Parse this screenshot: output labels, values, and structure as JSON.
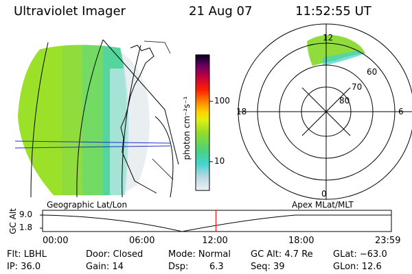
{
  "header": {
    "instrument": "Ultraviolet Imager",
    "date": "21 Aug 07",
    "time": "11:52:55 UT"
  },
  "colorbar": {
    "unit_label": "photon cm⁻²s⁻¹",
    "ticks": [
      "100",
      "10"
    ],
    "colors": [
      "#e8eef0",
      "#b9d9e0",
      "#3fd3d0",
      "#27c7c9",
      "#4cd37a",
      "#79dc35",
      "#a7e61a",
      "#d7ef13",
      "#f3f200",
      "#ffcf00",
      "#ff9a00",
      "#ff5a00",
      "#ff1a00",
      "#e00020",
      "#c00040",
      "#90005a",
      "#5a0060",
      "#2a0040",
      "#000020"
    ]
  },
  "left_panel": {
    "caption": "Geographic Lat/Lon"
  },
  "right_panel": {
    "caption": "Apex MLat/MLT",
    "mlt_labels": {
      "top": "12",
      "left": "18",
      "right": "6",
      "bottom": "0"
    },
    "mlat_labels": [
      "60",
      "70",
      "80"
    ]
  },
  "timeline": {
    "axis_label": "GC Alt",
    "y_ticks": [
      "9.0",
      "1.8"
    ],
    "x_ticks": [
      "00:00",
      "06:00",
      "12:00",
      "18:00",
      "23:59"
    ],
    "current_time_fraction": 0.497,
    "current_marker_color": "#ff0000"
  },
  "info": {
    "filter": "Flt: LBHL",
    "door": "Door: Closed",
    "mode": "Mode: Normal",
    "gc_alt": "GC Alt: 4.7 Re",
    "glat": "GLat: −63.0",
    "ip": "IP: 36.0",
    "gain": "Gain: 14",
    "dsp_label": "Dsp:",
    "dsp_value": "6.3",
    "seq": "Seq: 39",
    "glon": "GLon: 12.6"
  }
}
